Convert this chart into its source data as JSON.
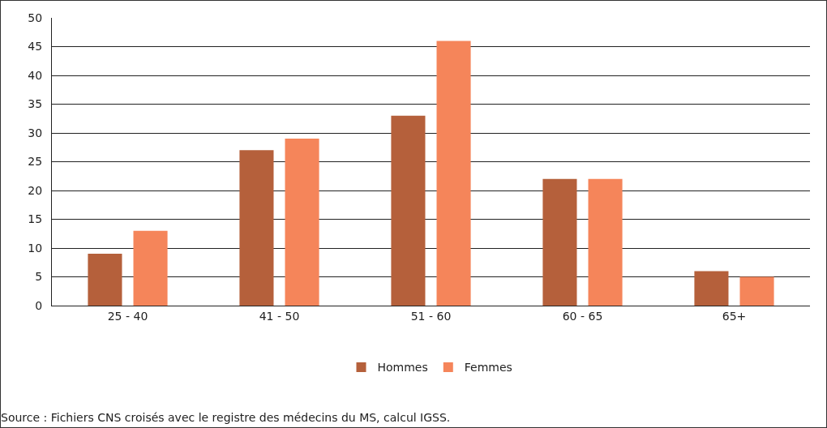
{
  "chart_data": {
    "type": "bar",
    "categories": [
      "25 - 40",
      "41 - 50",
      "51 - 60",
      "60 - 65",
      "65+"
    ],
    "series": [
      {
        "name": "Hommes",
        "color": "#b5603b",
        "values": [
          9,
          27,
          33,
          22,
          6
        ]
      },
      {
        "name": "Femmes",
        "color": "#f5855a",
        "values": [
          13,
          29,
          46,
          22,
          5
        ]
      }
    ],
    "ylim": [
      0,
      50
    ],
    "yticks": [
      0,
      5,
      10,
      15,
      20,
      25,
      30,
      35,
      40,
      45,
      50
    ],
    "grid": "y",
    "legend": "bottom",
    "annotations": [
      "Source : Fichiers CNS croisés avec le registre des médecins du MS, calcul IGSS."
    ]
  }
}
